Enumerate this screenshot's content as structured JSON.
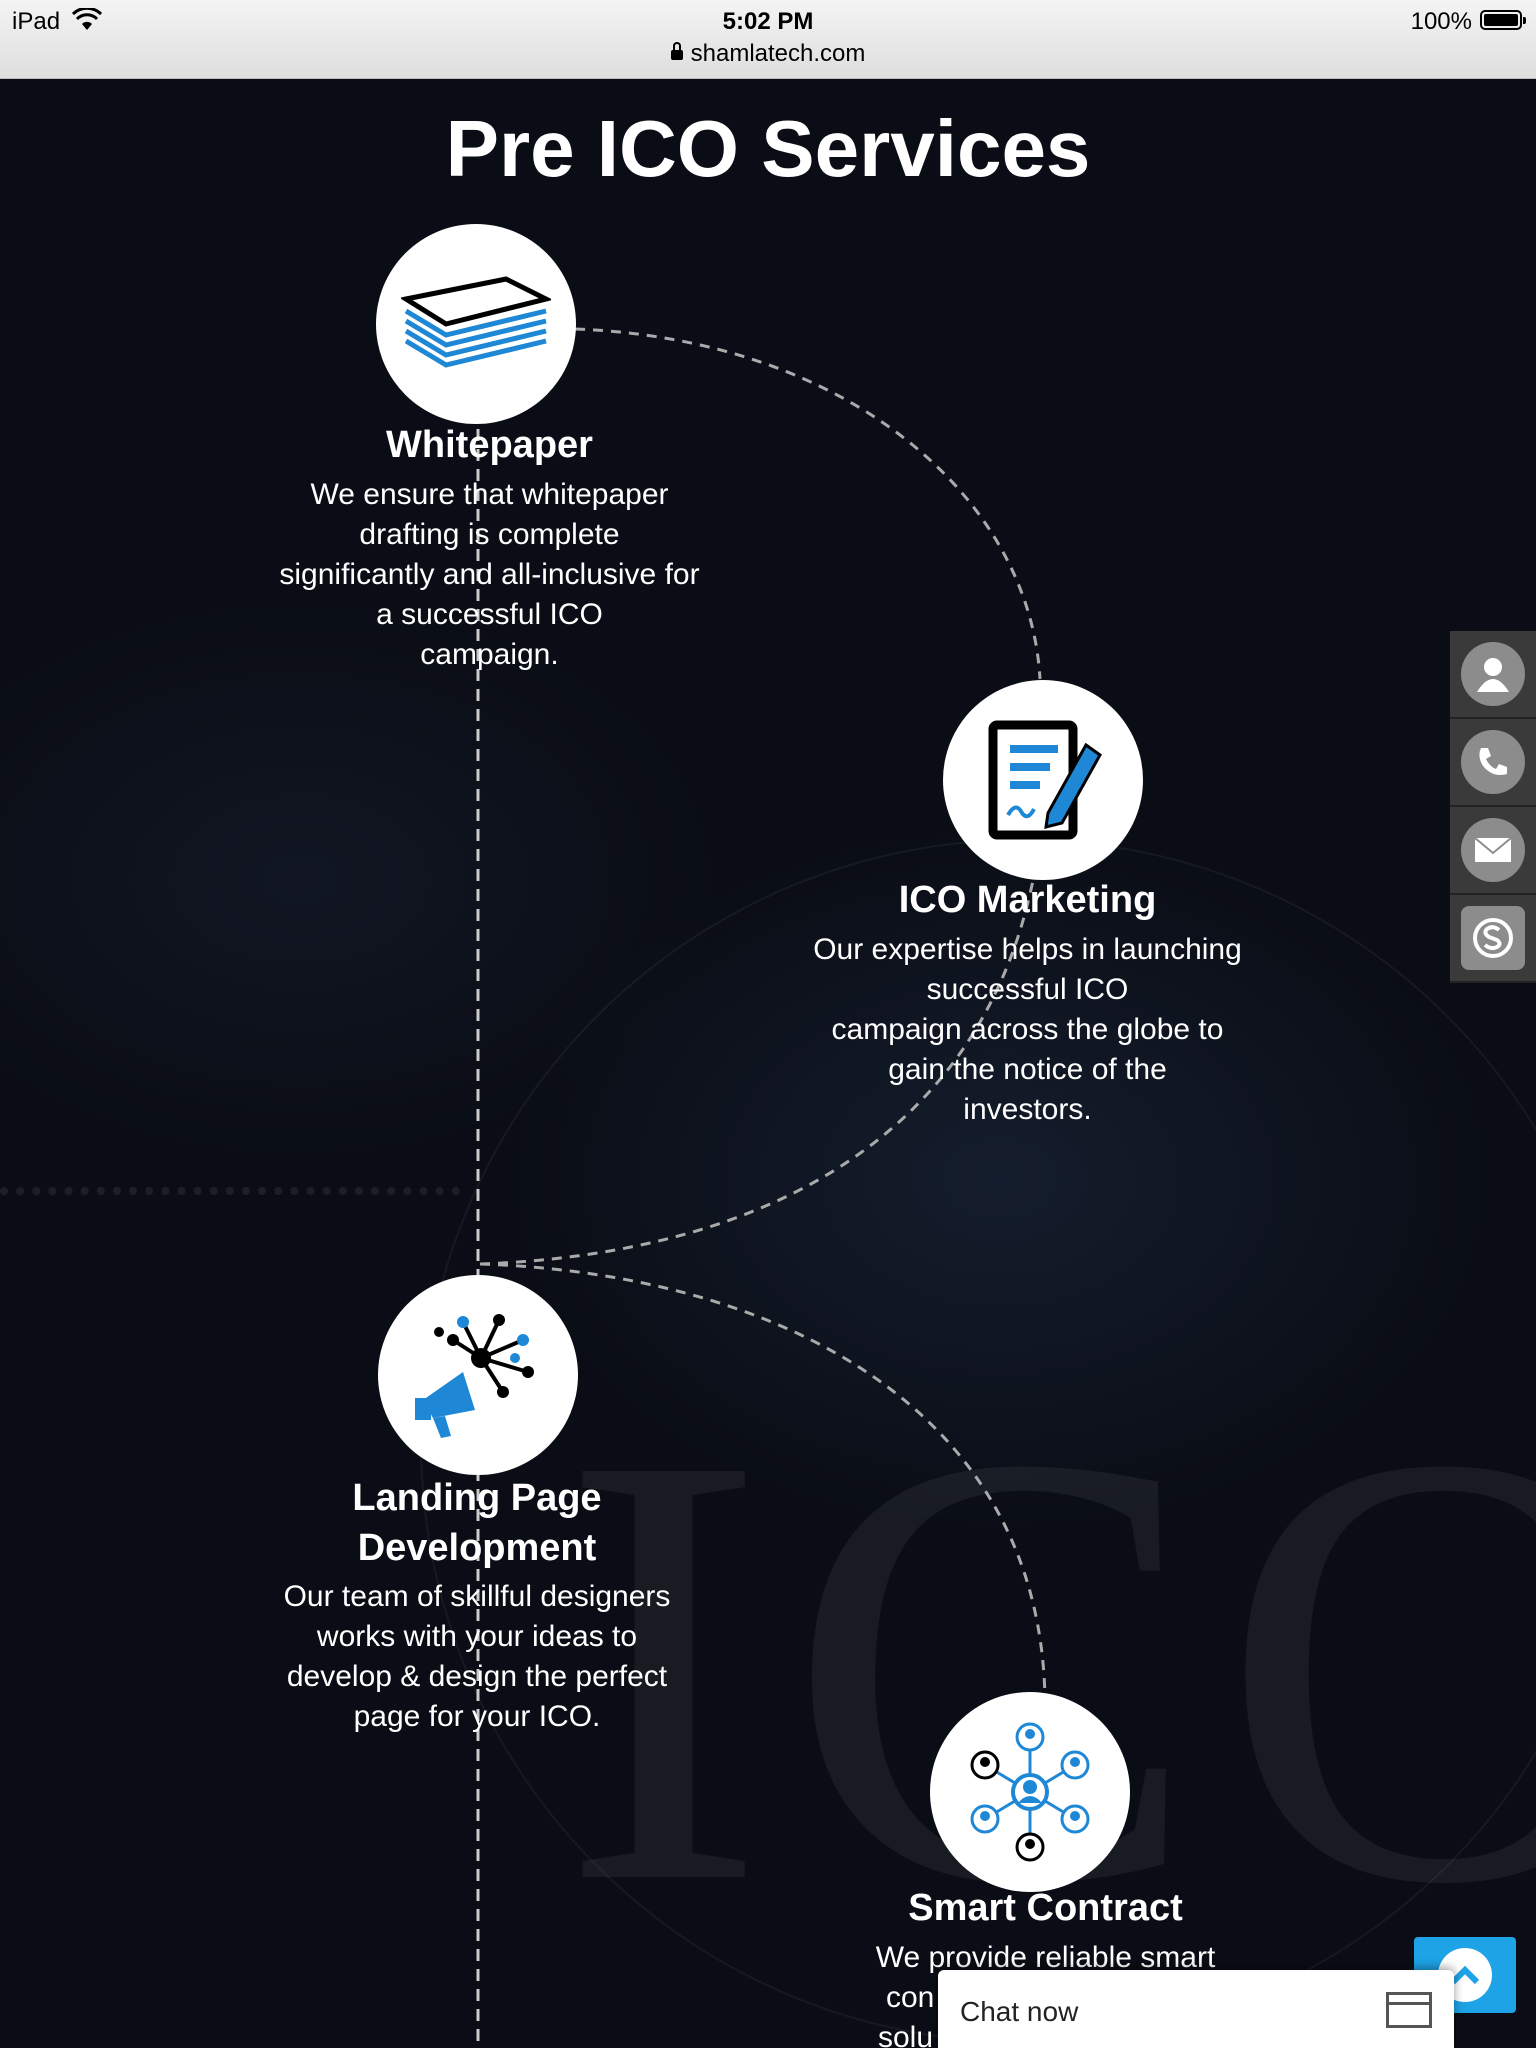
{
  "status_bar": {
    "device": "iPad",
    "time": "5:02 PM",
    "battery": "100%",
    "url": "shamlatech.com"
  },
  "page": {
    "title": "Pre ICO Services"
  },
  "services": [
    {
      "title": "Whitepaper",
      "description_lines": [
        "We ensure that whitepaper",
        "drafting is complete",
        "significantly and all-inclusive for",
        "a successful ICO",
        "campaign."
      ],
      "icon": "stacked-papers-icon"
    },
    {
      "title": "ICO Marketing",
      "description_lines": [
        "Our expertise helps in launching",
        "successful ICO",
        "campaign across the globe to",
        "gain the notice of the",
        "investors."
      ],
      "icon": "document-pen-icon"
    },
    {
      "title_lines": [
        "Landing Page",
        "Development"
      ],
      "description_lines": [
        "Our team of skillful designers",
        "works with your ideas to",
        "develop & design the perfect",
        "page for your ICO."
      ],
      "icon": "megaphone-network-icon"
    },
    {
      "title": "Smart Contract",
      "description_lines": [
        "We provide reliable smart",
        "con",
        "solu"
      ],
      "icon": "people-network-icon"
    }
  ],
  "side_contact": [
    "user-icon",
    "phone-icon",
    "mail-icon",
    "skype-icon"
  ],
  "chat": {
    "label": "Chat now"
  },
  "colors": {
    "accent_blue": "#1e88d6",
    "scroll_top_bg": "#1ea3e6",
    "background": "#0a0d15"
  }
}
